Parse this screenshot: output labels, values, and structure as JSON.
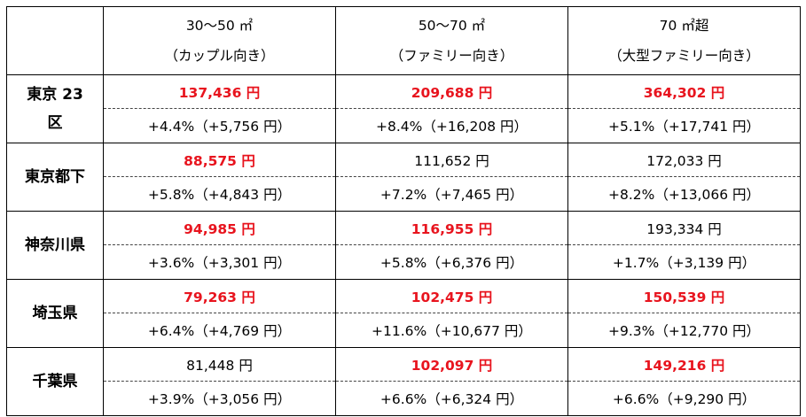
{
  "colors": {
    "highlight": "#e8141e",
    "text": "#000000"
  },
  "headers": [
    {
      "line1": "30～50 ㎡",
      "line2": "（カップル向き）"
    },
    {
      "line1": "50～70 ㎡",
      "line2": "（ファミリー向き）"
    },
    {
      "line1": "70 ㎡超",
      "line2": "（大型ファミリー向き）"
    }
  ],
  "rows": [
    {
      "region_line1": "東京 23",
      "region_line2": "区",
      "prices": [
        "137,436 円",
        "209,688 円",
        "364,302 円"
      ],
      "highlighted": [
        true,
        true,
        true
      ],
      "changes": [
        "+4.4%（+5,756 円）",
        "+8.4%（+16,208 円）",
        "+5.1%（+17,741 円）"
      ]
    },
    {
      "region_line1": "東京都下",
      "region_line2": "",
      "prices": [
        "88,575 円",
        "111,652 円",
        "172,033 円"
      ],
      "highlighted": [
        true,
        false,
        false
      ],
      "changes": [
        "+5.8%（+4,843 円）",
        "+7.2%（+7,465 円）",
        "+8.2%（+13,066 円）"
      ]
    },
    {
      "region_line1": "神奈川県",
      "region_line2": "",
      "prices": [
        "94,985 円",
        "116,955 円",
        "193,334 円"
      ],
      "highlighted": [
        true,
        true,
        false
      ],
      "changes": [
        "+3.6%（+3,301 円）",
        "+5.8%（+6,376 円）",
        "+1.7%（+3,139 円）"
      ]
    },
    {
      "region_line1": "埼玉県",
      "region_line2": "",
      "prices": [
        "79,263 円",
        "102,475 円",
        "150,539 円"
      ],
      "highlighted": [
        true,
        true,
        true
      ],
      "changes": [
        "+6.4%（+4,769 円）",
        "+11.6%（+10,677 円）",
        "+9.3%（+12,770 円）"
      ]
    },
    {
      "region_line1": "千葉県",
      "region_line2": "",
      "prices": [
        "81,448 円",
        "102,097 円",
        "149,216 円"
      ],
      "highlighted": [
        false,
        true,
        true
      ],
      "changes": [
        "+3.9%（+3,056 円）",
        "+6.6%（+6,324 円）",
        "+6.6%（+9,290 円）"
      ]
    }
  ]
}
